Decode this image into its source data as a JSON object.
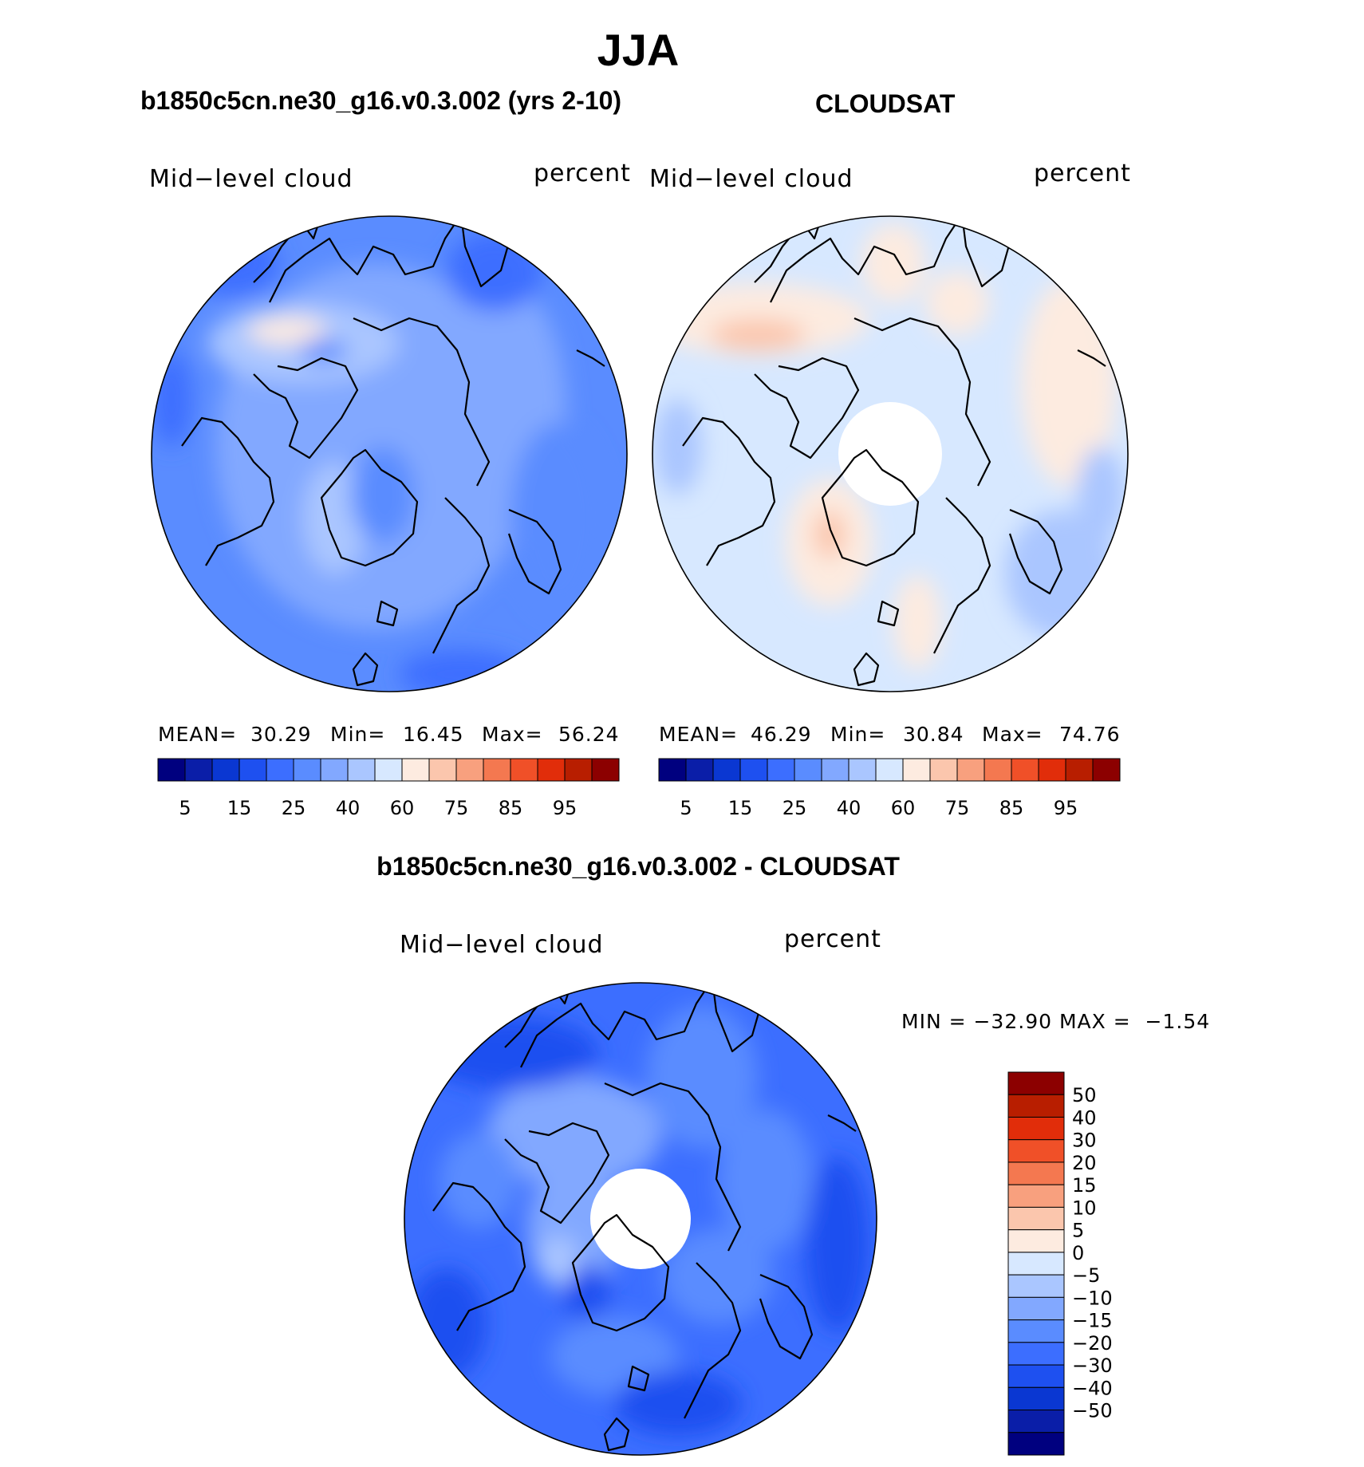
{
  "title": "JJA",
  "colors": {
    "palette": [
      "#00007f",
      "#0a1ea8",
      "#0a37d2",
      "#1e50f0",
      "#3c6eff",
      "#5a8cff",
      "#82a8ff",
      "#aac6ff",
      "#d7e8ff",
      "#fdebe0",
      "#fbc6ad",
      "#f8a07e",
      "#f47850",
      "#f05028",
      "#e12d0a",
      "#b81e00",
      "#8c0000"
    ],
    "outline": "#000000",
    "land": "#000000"
  },
  "chart_data": [
    {
      "type": "heatmap",
      "projection": "north polar stereographic",
      "title": "b1850c5cn.ne30_g16.v0.3.002 (yrs 2-10)",
      "variable": "Mid−level cloud",
      "units": "percent",
      "stats": {
        "mean": "30.29",
        "min": "16.45",
        "max": "56.24"
      },
      "stats_labels": {
        "mean": "MEAN=",
        "min": "Min=",
        "max": "Max="
      },
      "colorbar": {
        "orientation": "horizontal",
        "levels": [
          5,
          10,
          15,
          20,
          25,
          30,
          40,
          50,
          60,
          70,
          75,
          80,
          85,
          90,
          95
        ],
        "tick_labels": [
          "5",
          "15",
          "25",
          "40",
          "60",
          "75",
          "85",
          "95"
        ]
      }
    },
    {
      "type": "heatmap",
      "projection": "north polar stereographic",
      "title": "CLOUDSAT",
      "variable": "Mid−level cloud",
      "units": "percent",
      "stats": {
        "mean": "46.29",
        "min": "30.84",
        "max": "74.76"
      },
      "stats_labels": {
        "mean": "MEAN=",
        "min": "Min=",
        "max": "Max="
      },
      "colorbar": {
        "orientation": "horizontal",
        "levels": [
          5,
          10,
          15,
          20,
          25,
          30,
          40,
          50,
          60,
          70,
          75,
          80,
          85,
          90,
          95
        ],
        "tick_labels": [
          "5",
          "15",
          "25",
          "40",
          "60",
          "75",
          "85",
          "95"
        ]
      }
    },
    {
      "type": "heatmap",
      "projection": "north polar stereographic",
      "title": "b1850c5cn.ne30_g16.v0.3.002 - CLOUDSAT",
      "variable": "Mid−level cloud",
      "units": "percent",
      "stats_text": "MIN = −32.90 MAX =  −1.54",
      "colorbar": {
        "orientation": "vertical",
        "levels": [
          50,
          40,
          30,
          20,
          15,
          10,
          5,
          0,
          -5,
          -10,
          -15,
          -20,
          -30,
          -40,
          -50
        ],
        "tick_labels": [
          "50",
          "40",
          "30",
          "20",
          "15",
          "10",
          "5",
          "0",
          "−5",
          "−10",
          "−15",
          "−20",
          "−30",
          "−40",
          "−50"
        ]
      }
    }
  ]
}
